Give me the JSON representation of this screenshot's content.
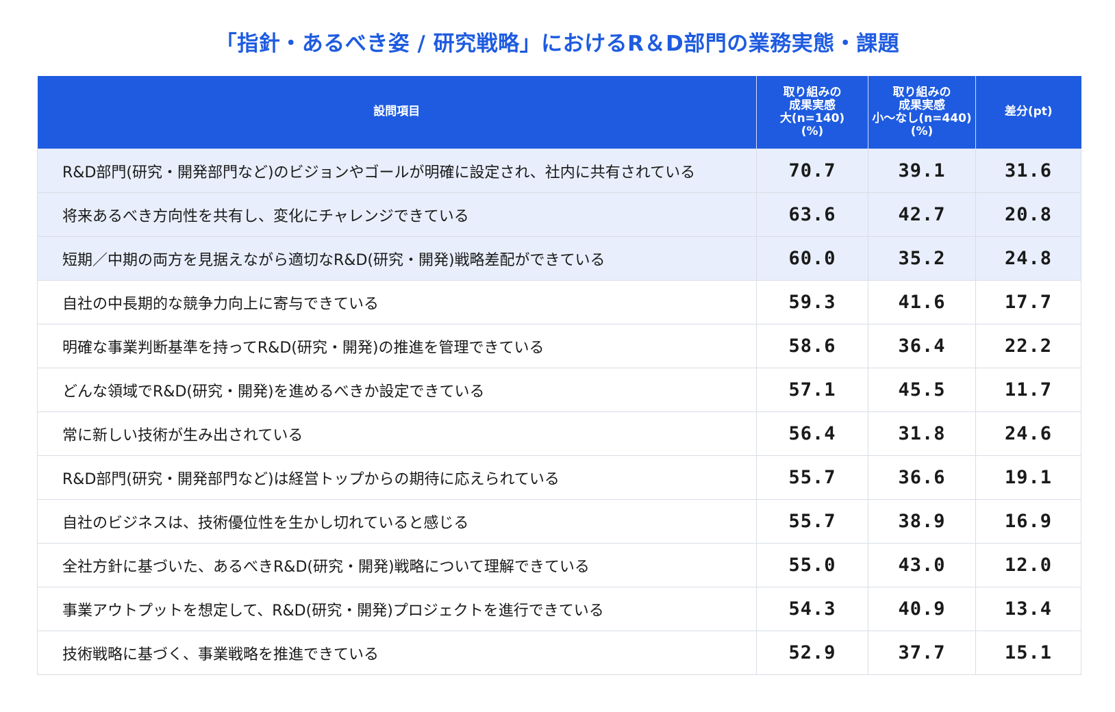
{
  "title": "「指針・あるべき姿 / 研究戦略」におけるR＆D部門の業務実態・課題",
  "colors": {
    "accent": "#1e5be0",
    "highlight_row": "#e8eefb",
    "border": "#d8dde6"
  },
  "chart_data": {
    "type": "table",
    "highlighted_rows": 3,
    "columns": [
      {
        "key": "item",
        "lines": [
          "設問項目"
        ]
      },
      {
        "key": "big",
        "lines": [
          "取り組みの",
          "成果実感",
          "大(n=140)",
          "(%)"
        ]
      },
      {
        "key": "small",
        "lines": [
          "取り組みの",
          "成果実感",
          "小～なし(n=440)",
          "(%)"
        ]
      },
      {
        "key": "diff",
        "lines": [
          "差分(pt)"
        ]
      }
    ],
    "rows": [
      {
        "item": "R&D部門(研究・開発部門など)のビジョンやゴールが明確に設定され、社内に共有されている",
        "big": "70.7",
        "small": "39.1",
        "diff": "31.6"
      },
      {
        "item": "将来あるべき方向性を共有し、変化にチャレンジできている",
        "big": "63.6",
        "small": "42.7",
        "diff": "20.8"
      },
      {
        "item": "短期／中期の両方を見据えながら適切なR&D(研究・開発)戦略差配ができている",
        "big": "60.0",
        "small": "35.2",
        "diff": "24.8"
      },
      {
        "item": "自社の中長期的な競争力向上に寄与できている",
        "big": "59.3",
        "small": "41.6",
        "diff": "17.7"
      },
      {
        "item": "明確な事業判断基準を持ってR&D(研究・開発)の推進を管理できている",
        "big": "58.6",
        "small": "36.4",
        "diff": "22.2"
      },
      {
        "item": "どんな領域でR&D(研究・開発)を進めるべきか設定できている",
        "big": "57.1",
        "small": "45.5",
        "diff": "11.7"
      },
      {
        "item": "常に新しい技術が生み出されている",
        "big": "56.4",
        "small": "31.8",
        "diff": "24.6"
      },
      {
        "item": "R&D部門(研究・開発部門など)は経営トップからの期待に応えられている",
        "big": "55.7",
        "small": "36.6",
        "diff": "19.1"
      },
      {
        "item": "自社のビジネスは、技術優位性を生かし切れていると感じる",
        "big": "55.7",
        "small": "38.9",
        "diff": "16.9"
      },
      {
        "item": "全社方針に基づいた、あるべきR&D(研究・開発)戦略について理解できている",
        "big": "55.0",
        "small": "43.0",
        "diff": "12.0"
      },
      {
        "item": "事業アウトプットを想定して、R&D(研究・開発)プロジェクトを進行できている",
        "big": "54.3",
        "small": "40.9",
        "diff": "13.4"
      },
      {
        "item": "技術戦略に基づく、事業戦略を推進できている",
        "big": "52.9",
        "small": "37.7",
        "diff": "15.1"
      }
    ]
  }
}
